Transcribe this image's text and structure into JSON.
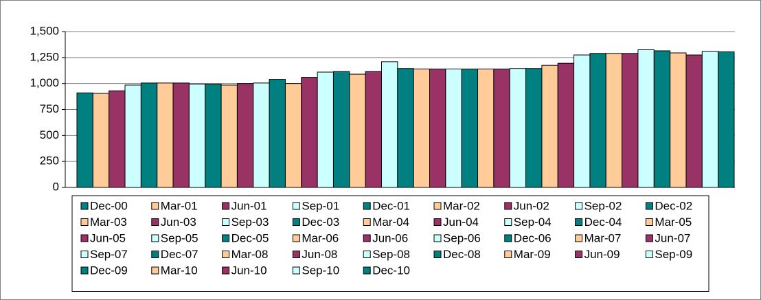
{
  "chart_data": {
    "type": "bar",
    "categories": [
      null
    ],
    "ylim": [
      0,
      1500
    ],
    "yticks": [
      0,
      250,
      500,
      750,
      {
        "value": 1000,
        "label": "1,000"
      },
      {
        "value": 1250,
        "label": "1,250"
      },
      {
        "value": 1500,
        "label": "1,500"
      }
    ],
    "grid": true,
    "legend": "bottom",
    "series": [
      {
        "name": "Dec-00",
        "color": "#008080",
        "values": [
          910
        ]
      },
      {
        "name": "Mar-01",
        "color": "#FFCC99",
        "values": [
          905
        ]
      },
      {
        "name": "Jun-01",
        "color": "#993366",
        "values": [
          930
        ]
      },
      {
        "name": "Sep-01",
        "color": "#CCFFFF",
        "values": [
          985
        ]
      },
      {
        "name": "Dec-01",
        "color": "#008080",
        "values": [
          1005
        ]
      },
      {
        "name": "Mar-02",
        "color": "#FFCC99",
        "values": [
          1005
        ]
      },
      {
        "name": "Jun-02",
        "color": "#993366",
        "values": [
          1005
        ]
      },
      {
        "name": "Sep-02",
        "color": "#CCFFFF",
        "values": [
          995
        ]
      },
      {
        "name": "Dec-02",
        "color": "#008080",
        "values": [
          995
        ]
      },
      {
        "name": "Mar-03",
        "color": "#FFCC99",
        "values": [
          985
        ]
      },
      {
        "name": "Jun-03",
        "color": "#993366",
        "values": [
          1000
        ]
      },
      {
        "name": "Sep-03",
        "color": "#CCFFFF",
        "values": [
          1005
        ]
      },
      {
        "name": "Dec-03",
        "color": "#008080",
        "values": [
          1040
        ]
      },
      {
        "name": "Mar-04",
        "color": "#FFCC99",
        "values": [
          1000
        ]
      },
      {
        "name": "Jun-04",
        "color": "#993366",
        "values": [
          1060
        ]
      },
      {
        "name": "Sep-04",
        "color": "#CCFFFF",
        "values": [
          1110
        ]
      },
      {
        "name": "Dec-04",
        "color": "#008080",
        "values": [
          1115
        ]
      },
      {
        "name": "Mar-05",
        "color": "#FFCC99",
        "values": [
          1090
        ]
      },
      {
        "name": "Jun-05",
        "color": "#993366",
        "values": [
          1115
        ]
      },
      {
        "name": "Sep-05",
        "color": "#CCFFFF",
        "values": [
          1210
        ]
      },
      {
        "name": "Dec-05",
        "color": "#008080",
        "values": [
          1145
        ]
      },
      {
        "name": "Mar-06",
        "color": "#FFCC99",
        "values": [
          1140
        ]
      },
      {
        "name": "Jun-06",
        "color": "#993366",
        "values": [
          1140
        ]
      },
      {
        "name": "Sep-06",
        "color": "#CCFFFF",
        "values": [
          1140
        ]
      },
      {
        "name": "Dec-06",
        "color": "#008080",
        "values": [
          1140
        ]
      },
      {
        "name": "Mar-07",
        "color": "#FFCC99",
        "values": [
          1140
        ]
      },
      {
        "name": "Jun-07",
        "color": "#993366",
        "values": [
          1140
        ]
      },
      {
        "name": "Sep-07",
        "color": "#CCFFFF",
        "values": [
          1145
        ]
      },
      {
        "name": "Dec-07",
        "color": "#008080",
        "values": [
          1145
        ]
      },
      {
        "name": "Mar-08",
        "color": "#FFCC99",
        "values": [
          1175
        ]
      },
      {
        "name": "Jun-08",
        "color": "#993366",
        "values": [
          1195
        ]
      },
      {
        "name": "Sep-08",
        "color": "#CCFFFF",
        "values": [
          1275
        ]
      },
      {
        "name": "Dec-08",
        "color": "#008080",
        "values": [
          1290
        ]
      },
      {
        "name": "Mar-09",
        "color": "#FFCC99",
        "values": [
          1290
        ]
      },
      {
        "name": "Jun-09",
        "color": "#993366",
        "values": [
          1290
        ]
      },
      {
        "name": "Sep-09",
        "color": "#CCFFFF",
        "values": [
          1325
        ]
      },
      {
        "name": "Dec-09",
        "color": "#008080",
        "values": [
          1315
        ]
      },
      {
        "name": "Mar-10",
        "color": "#FFCC99",
        "values": [
          1295
        ]
      },
      {
        "name": "Jun-10",
        "color": "#993366",
        "values": [
          1275
        ]
      },
      {
        "name": "Sep-10",
        "color": "#CCFFFF",
        "values": [
          1310
        ]
      },
      {
        "name": "Dec-10",
        "color": "#008080",
        "values": [
          1305
        ]
      }
    ]
  }
}
